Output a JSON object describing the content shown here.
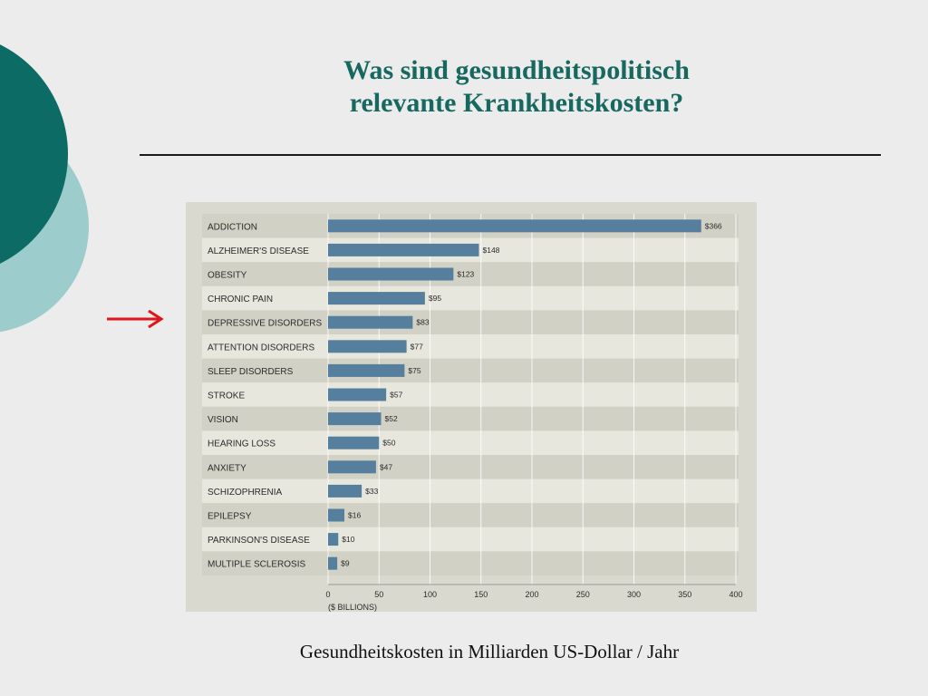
{
  "slide": {
    "title_line1": "Was sind gesundheitspolitisch",
    "title_line2": "relevante Krankheitskosten?",
    "caption": "Gesundheitskosten in Milliarden US-Dollar / Jahr",
    "accent_color": "#17685f",
    "light_accent_color": "#9ccccb",
    "arrow_color": "#e0141b"
  },
  "chart_data": {
    "type": "bar",
    "orientation": "horizontal",
    "categories": [
      "ADDICTION",
      "ALZHEIMER'S DISEASE",
      "OBESITY",
      "CHRONIC PAIN",
      "DEPRESSIVE DISORDERS",
      "ATTENTION DISORDERS",
      "SLEEP DISORDERS",
      "STROKE",
      "VISION",
      "HEARING LOSS",
      "ANXIETY",
      "SCHIZOPHRENIA",
      "EPILEPSY",
      "PARKINSON'S DISEASE",
      "MULTIPLE SCLEROSIS"
    ],
    "values": [
      366,
      148,
      123,
      95,
      83,
      77,
      75,
      57,
      52,
      50,
      47,
      33,
      16,
      10,
      9
    ],
    "value_labels": [
      "$366",
      "$148",
      "$123",
      "$95",
      "$83",
      "$77",
      "$75",
      "$57",
      "$52",
      "$50",
      "$47",
      "$33",
      "$16",
      "$10",
      "$9"
    ],
    "xlabel": "($ BILLIONS)",
    "xlim": [
      0,
      400
    ],
    "xticks": [
      "0",
      "50",
      "100",
      "150",
      "200",
      "250",
      "300",
      "350",
      "400"
    ],
    "grid": true,
    "bar_color": "#557f9c",
    "highlighted_category": "DEPRESSIVE DISORDERS"
  }
}
